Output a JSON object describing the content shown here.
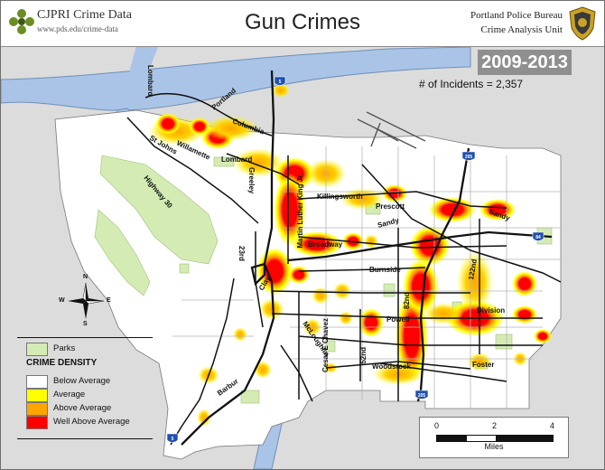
{
  "header": {
    "org_name": "CJPRI Crime Data",
    "org_url": "www.pds.edu/crime-data",
    "title": "Gun Crimes",
    "agency": "Portland Police Bureau",
    "unit": "Crime Analysis Unit"
  },
  "period": "2009-2013",
  "incidents": {
    "label": "# of Incidents =",
    "value": "2,357"
  },
  "compass": {
    "n": "N",
    "s": "S",
    "e": "E",
    "w": "W"
  },
  "legend": {
    "parks": {
      "label": "Parks",
      "color": "#d4ecb4"
    },
    "heading": "CRIME DENSITY",
    "items": [
      {
        "label": "Below Average",
        "color": "#ffffff"
      },
      {
        "label": "Average",
        "color": "#ffff00"
      },
      {
        "label": "Above Average",
        "color": "#ffa500"
      },
      {
        "label": "Well Above Average",
        "color": "#ff0000"
      }
    ]
  },
  "scale": {
    "ticks": [
      "0",
      "2",
      "4"
    ],
    "unit": "Miles"
  },
  "shields": {
    "i5_north": "5",
    "i205_north": "205",
    "i84": "84",
    "i205_south": "205",
    "i5_south": "5"
  },
  "roads": {
    "lombard_north": "Lombard",
    "portland": "Portland",
    "columbia": "Columbia",
    "st_johns": "St Johns",
    "willamette": "Willamette",
    "lombard": "Lombard",
    "greeley": "Greeley",
    "mlk": "Martin Luther King Jr.",
    "killingsworth": "Killingsworth",
    "prescott": "Prescott",
    "sandy": "Sandy",
    "sandy_east": "Sandy",
    "highway30": "Highway 30",
    "broadway": "Broadway",
    "burnside": "Burnside",
    "r23rd": "23rd",
    "clay": "Clay",
    "r82nd": "82nd",
    "r122nd": "122nd",
    "cesar_chavez": "Cesar E Chavez",
    "r52nd": "52nd",
    "powell": "Powell",
    "division": "Division",
    "mcloughlin": "McLoughlin",
    "woodstock": "Woodstock",
    "foster": "Foster",
    "barbur": "Barbur"
  }
}
